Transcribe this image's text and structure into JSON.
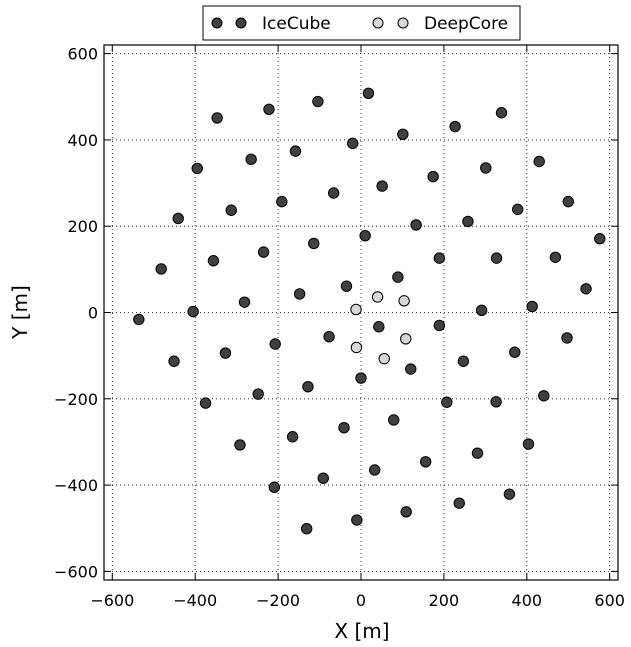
{
  "chart_data": {
    "type": "scatter",
    "title": "",
    "xlabel": "X [m]",
    "ylabel": "Y [m]",
    "xlim": [
      -620,
      620
    ],
    "ylim": [
      -620,
      620
    ],
    "xticks": [
      -600,
      -400,
      -200,
      0,
      200,
      400,
      600
    ],
    "yticks": [
      -600,
      -400,
      -200,
      0,
      200,
      400,
      600
    ],
    "xtick_labels": [
      "−600",
      "−400",
      "−200",
      "0",
      "200",
      "400",
      "600"
    ],
    "ytick_labels": [
      "−600",
      "−400",
      "−200",
      "0",
      "200",
      "400",
      "600"
    ],
    "grid": true,
    "legend_position": "top-center",
    "series": [
      {
        "name": "IceCube",
        "color": "#404040",
        "points": [
          [
            18,
            508
          ],
          [
            -222,
            471
          ],
          [
            -104,
            489
          ],
          [
            339,
            463
          ],
          [
            -347,
            451
          ],
          [
            227,
            431
          ],
          [
            101,
            413
          ],
          [
            -20,
            392
          ],
          [
            -158,
            374
          ],
          [
            -395,
            334
          ],
          [
            -265,
            355
          ],
          [
            301,
            335
          ],
          [
            174,
            315
          ],
          [
            51,
            293
          ],
          [
            -66,
            277
          ],
          [
            -191,
            257
          ],
          [
            -313,
            237
          ],
          [
            -441,
            218
          ],
          [
            500,
            257
          ],
          [
            378,
            239
          ],
          [
            258,
            211
          ],
          [
            133,
            203
          ],
          [
            10,
            178
          ],
          [
            -114,
            160
          ],
          [
            -235,
            140
          ],
          [
            -356,
            120
          ],
          [
            -482,
            101
          ],
          [
            576,
            171
          ],
          [
            430,
            350
          ],
          [
            469,
            128
          ],
          [
            327,
            126
          ],
          [
            189,
            126
          ],
          [
            89,
            82
          ],
          [
            -35,
            61
          ],
          [
            -148,
            43
          ],
          [
            -281,
            24
          ],
          [
            -405,
            2
          ],
          [
            -536,
            -16
          ],
          [
            543,
            55
          ],
          [
            413,
            14
          ],
          [
            291,
            5
          ],
          [
            189,
            -30
          ],
          [
            43,
            -33
          ],
          [
            -77,
            -56
          ],
          [
            -207,
            -73
          ],
          [
            -327,
            -94
          ],
          [
            -451,
            -113
          ],
          [
            497,
            -59
          ],
          [
            371,
            -92
          ],
          [
            247,
            -113
          ],
          [
            120,
            -131
          ],
          [
            0,
            -152
          ],
          [
            -128,
            -172
          ],
          [
            -248,
            -189
          ],
          [
            -375,
            -210
          ],
          [
            441,
            -193
          ],
          [
            326,
            -207
          ],
          [
            207,
            -208
          ],
          [
            79,
            -249
          ],
          [
            -41,
            -267
          ],
          [
            -165,
            -288
          ],
          [
            -292,
            -307
          ],
          [
            404,
            -305
          ],
          [
            281,
            -326
          ],
          [
            156,
            -346
          ],
          [
            33,
            -365
          ],
          [
            -91,
            -384
          ],
          [
            -209,
            -405
          ],
          [
            358,
            -421
          ],
          [
            237,
            -442
          ],
          [
            109,
            -462
          ],
          [
            -10,
            -481
          ],
          [
            -131,
            -501
          ]
        ]
      },
      {
        "name": "DeepCore",
        "color": "#d8d8d8",
        "points": [
          [
            40,
            36
          ],
          [
            104,
            27
          ],
          [
            -12,
            7
          ],
          [
            108,
            -61
          ],
          [
            -11,
            -81
          ],
          [
            56,
            -107
          ]
        ]
      }
    ]
  }
}
